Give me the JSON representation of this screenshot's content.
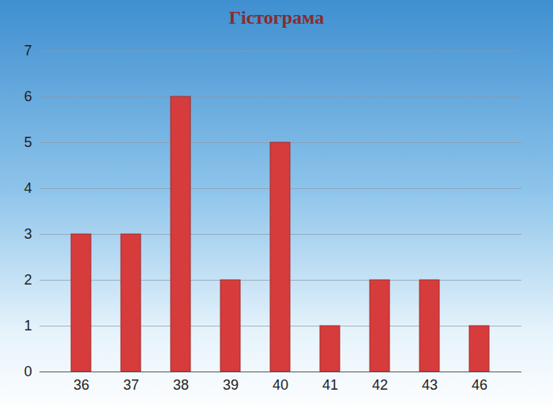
{
  "chart_data": {
    "type": "bar",
    "title": "Гістограма",
    "categories": [
      "36",
      "37",
      "38",
      "39",
      "40",
      "41",
      "42",
      "43",
      "46"
    ],
    "values": [
      3,
      3,
      6,
      2,
      5,
      1,
      2,
      2,
      1
    ],
    "color": "#d63c3c",
    "ylim": [
      0,
      7
    ],
    "yticks": [
      0,
      1,
      2,
      3,
      4,
      5,
      6,
      7
    ],
    "grid": true
  }
}
